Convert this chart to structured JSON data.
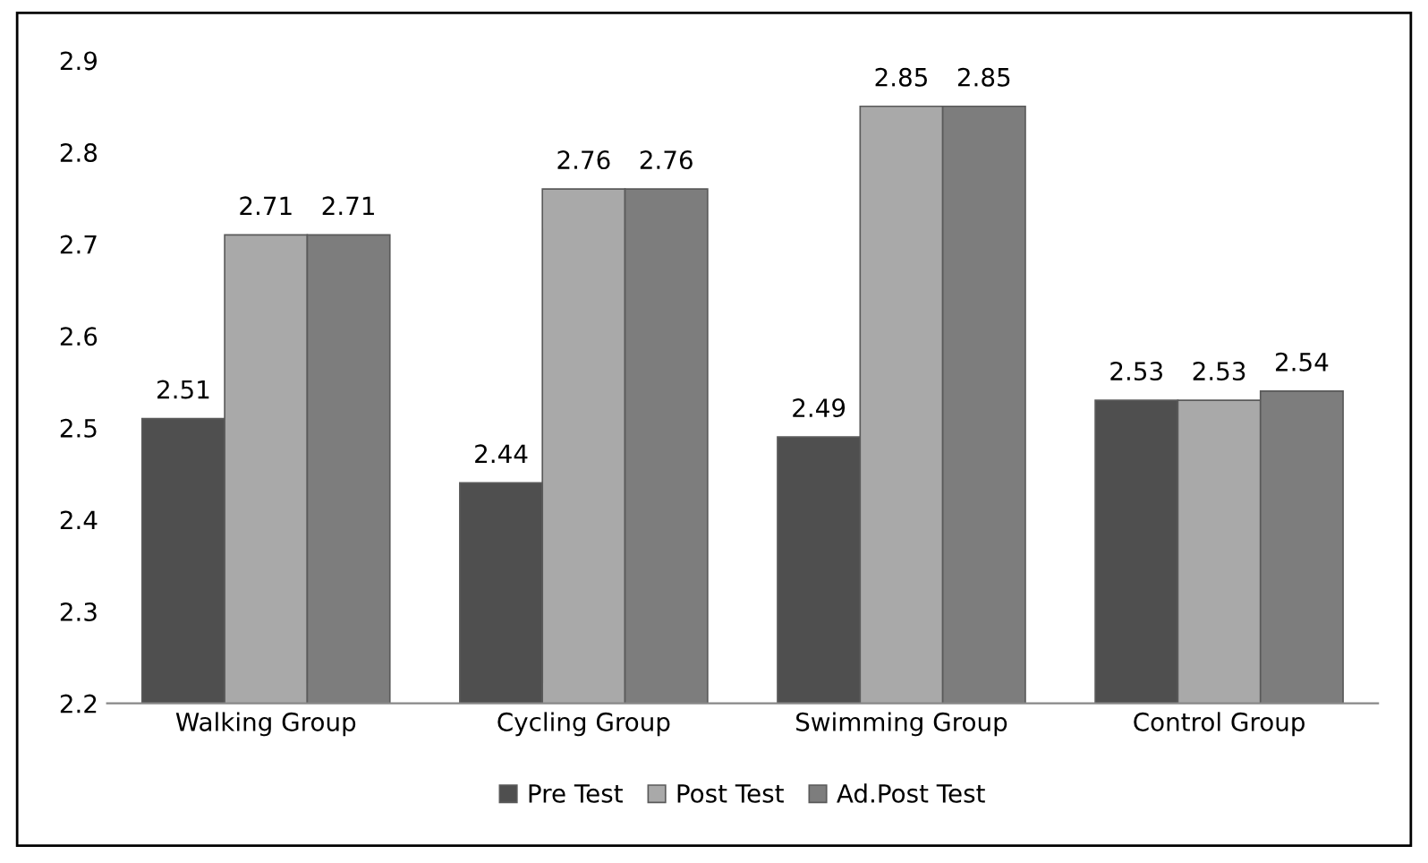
{
  "chart_data": {
    "type": "bar",
    "categories": [
      "Walking Group",
      "Cycling Group",
      "Swimming Group",
      "Control Group"
    ],
    "series": [
      {
        "name": "Pre Test",
        "color": "#4f4f4f",
        "values": [
          2.51,
          2.44,
          2.49,
          2.53
        ]
      },
      {
        "name": "Post Test",
        "color": "#a9a9a9",
        "values": [
          2.71,
          2.76,
          2.85,
          2.53
        ]
      },
      {
        "name": "Ad.Post Test",
        "color": "#7d7d7d",
        "values": [
          2.71,
          2.76,
          2.85,
          2.54
        ]
      }
    ],
    "ylim": [
      2.2,
      2.9
    ],
    "yticks": [
      2.2,
      2.3,
      2.4,
      2.5,
      2.6,
      2.7,
      2.8,
      2.9
    ],
    "data_labels": true,
    "grid": false,
    "legend": "bottom"
  }
}
